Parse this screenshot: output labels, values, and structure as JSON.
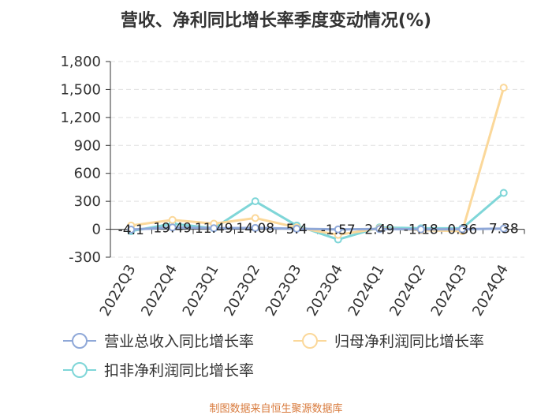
{
  "chart_data": {
    "type": "line",
    "title": "营收、净利同比增长率季度变动情况(%)",
    "categories": [
      "2022Q3",
      "2022Q4",
      "2023Q1",
      "2023Q2",
      "2023Q3",
      "2023Q4",
      "2024Q1",
      "2024Q2",
      "2024Q3",
      "2024Q4"
    ],
    "ylim": [
      -300,
      1800
    ],
    "yticks": [
      -300,
      0,
      300,
      600,
      900,
      1200,
      1500,
      1800
    ],
    "ytick_labels": [
      "-300",
      "0",
      "300",
      "600",
      "900",
      "1,200",
      "1,500",
      "1,800"
    ],
    "grid": true,
    "legend_position": "bottom",
    "series": [
      {
        "name": "营业总收入同比增长率",
        "color": "#8fa8d8",
        "values": [
          -4.1,
          19.49,
          11.49,
          14.08,
          5.4,
          -1.57,
          2.49,
          -1.18,
          0.36,
          7.38
        ],
        "data_labels": [
          "-4.1",
          "19.49",
          "11.49",
          "14.08",
          "5.4",
          "-1.57",
          "2.49",
          "-1.18",
          "0.36",
          "7.38"
        ]
      },
      {
        "name": "归母净利润同比增长率",
        "color": "#fbd89a",
        "values": [
          40,
          100,
          60,
          120,
          20,
          -60,
          10,
          -10,
          -20,
          1520
        ]
      },
      {
        "name": "扣非净利润同比增长率",
        "color": "#7fd6d8",
        "values": [
          -20,
          60,
          10,
          300,
          40,
          -110,
          20,
          10,
          10,
          390
        ]
      }
    ]
  },
  "source_note": "制图数据来自恒生聚源数据库"
}
